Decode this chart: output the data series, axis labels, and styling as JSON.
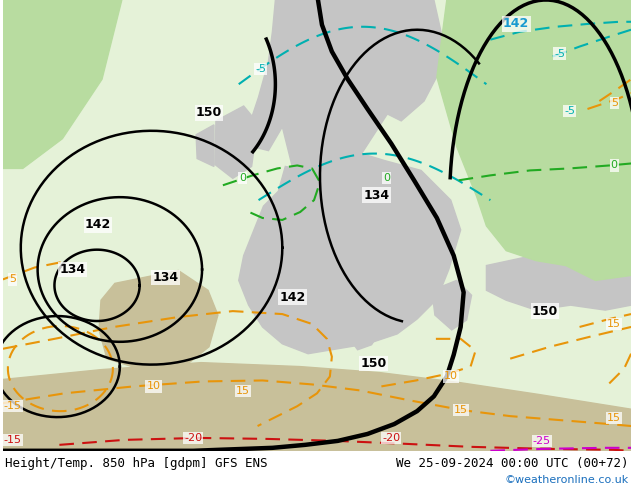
{
  "title_left": "Height/Temp. 850 hPa [gdpm] GFS ENS",
  "title_right": "We 25-09-2024 00:00 UTC (00+72)",
  "credit": "©weatheronline.co.uk",
  "fig_width": 6.34,
  "fig_height": 4.9,
  "dpi": 100,
  "geopotential_color": "#000000",
  "geopotential_lw": 2.5,
  "orange_color": "#e8950a",
  "cyan_color": "#00b0b0",
  "green_color": "#22aa22",
  "red_color": "#cc1111",
  "magenta_color": "#cc00cc",
  "blue_label_color": "#1a6fbd",
  "background": "#ffffff",
  "map_bg": "#e5f2d8",
  "land_gray": "#c5c5c5",
  "land_green": "#b8dca0",
  "geo_blue": "#1a9ad0"
}
